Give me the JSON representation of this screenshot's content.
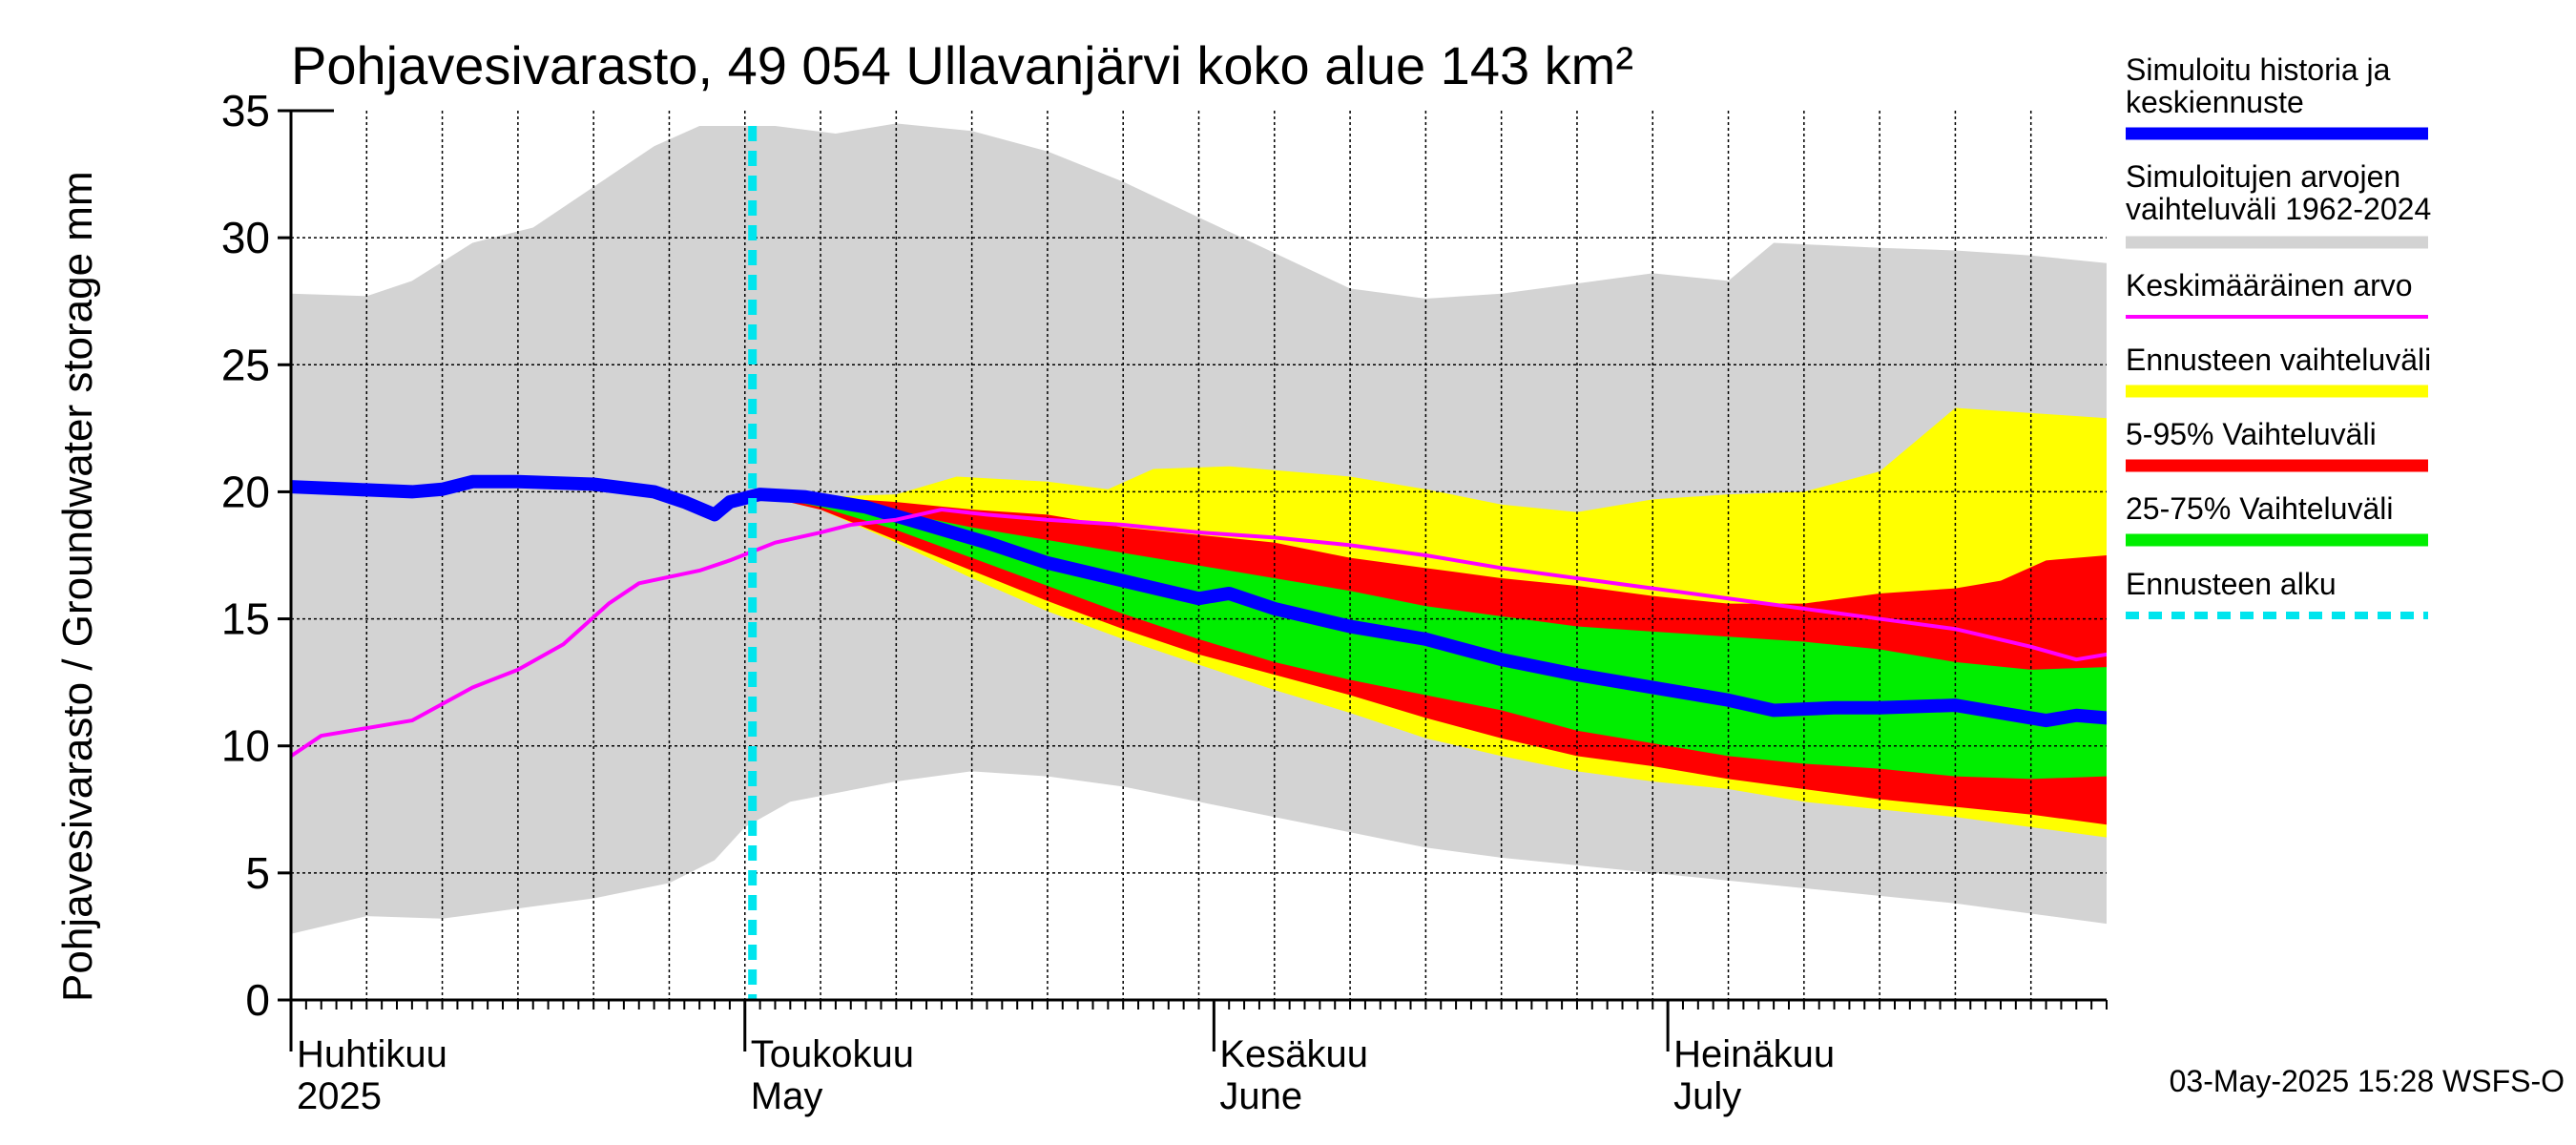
{
  "chart_data": {
    "type": "area",
    "title": "Pohjavesivarasto, 49 054 Ullavanjärvi koko alue 143 km²",
    "ylabel": "Pohjavesivarasto / Groundwater storage   mm",
    "ylim": [
      0,
      35
    ],
    "yticks": [
      0,
      5,
      10,
      15,
      20,
      25,
      30,
      35
    ],
    "xlim_day": [
      0,
      120
    ],
    "month_labels": [
      {
        "fi": "Huhtikuu",
        "en": "2025",
        "day": 0
      },
      {
        "fi": "Toukokuu",
        "en": "May",
        "day": 30
      },
      {
        "fi": "Kesäkuu",
        "en": "June",
        "day": 61
      },
      {
        "fi": "Heinäkuu",
        "en": "July",
        "day": 91
      }
    ],
    "forecast_start_day": 30.5,
    "timestamp": "03-May-2025 15:28 WSFS-O",
    "series": [
      {
        "name": "sim_range",
        "kind": "band",
        "color": "#d3d3d3",
        "lower": [
          [
            0,
            2.6
          ],
          [
            5,
            3.3
          ],
          [
            10,
            3.2
          ],
          [
            15,
            3.6
          ],
          [
            20,
            4.0
          ],
          [
            25,
            4.6
          ],
          [
            28,
            5.5
          ],
          [
            30,
            6.8
          ],
          [
            33,
            7.8
          ],
          [
            40,
            8.6
          ],
          [
            45,
            9.0
          ],
          [
            50,
            8.8
          ],
          [
            55,
            8.4
          ],
          [
            60,
            7.8
          ],
          [
            65,
            7.2
          ],
          [
            70,
            6.6
          ],
          [
            75,
            6.0
          ],
          [
            80,
            5.6
          ],
          [
            85,
            5.3
          ],
          [
            90,
            5.0
          ],
          [
            95,
            4.7
          ],
          [
            100,
            4.4
          ],
          [
            105,
            4.1
          ],
          [
            110,
            3.8
          ],
          [
            115,
            3.4
          ],
          [
            120,
            3.0
          ]
        ],
        "upper": [
          [
            0,
            27.8
          ],
          [
            5,
            27.7
          ],
          [
            8,
            28.3
          ],
          [
            12,
            29.8
          ],
          [
            16,
            30.4
          ],
          [
            20,
            32.0
          ],
          [
            24,
            33.6
          ],
          [
            27,
            34.4
          ],
          [
            32,
            34.4
          ],
          [
            36,
            34.1
          ],
          [
            40,
            34.5
          ],
          [
            45,
            34.2
          ],
          [
            50,
            33.4
          ],
          [
            55,
            32.2
          ],
          [
            60,
            30.8
          ],
          [
            65,
            29.4
          ],
          [
            70,
            28.0
          ],
          [
            75,
            27.6
          ],
          [
            80,
            27.8
          ],
          [
            85,
            28.2
          ],
          [
            90,
            28.6
          ],
          [
            95,
            28.3
          ],
          [
            98,
            29.8
          ],
          [
            105,
            29.6
          ],
          [
            110,
            29.5
          ],
          [
            115,
            29.3
          ],
          [
            120,
            29.0
          ]
        ]
      },
      {
        "name": "forecast_range",
        "kind": "band",
        "color": "#ffff00",
        "lower": [
          [
            30,
            20.0
          ],
          [
            35,
            19.3
          ],
          [
            40,
            18.0
          ],
          [
            45,
            16.6
          ],
          [
            50,
            15.3
          ],
          [
            55,
            14.2
          ],
          [
            60,
            13.2
          ],
          [
            65,
            12.2
          ],
          [
            70,
            11.3
          ],
          [
            75,
            10.3
          ],
          [
            80,
            9.6
          ],
          [
            85,
            9.0
          ],
          [
            90,
            8.6
          ],
          [
            95,
            8.3
          ],
          [
            100,
            7.8
          ],
          [
            105,
            7.5
          ],
          [
            110,
            7.2
          ],
          [
            115,
            6.8
          ],
          [
            120,
            6.4
          ]
        ],
        "upper": [
          [
            30,
            20.0
          ],
          [
            35,
            19.8
          ],
          [
            40,
            19.9
          ],
          [
            44,
            20.6
          ],
          [
            50,
            20.4
          ],
          [
            54,
            20.1
          ],
          [
            57,
            20.9
          ],
          [
            62,
            21.0
          ],
          [
            70,
            20.6
          ],
          [
            75,
            20.1
          ],
          [
            80,
            19.5
          ],
          [
            85,
            19.2
          ],
          [
            90,
            19.7
          ],
          [
            95,
            19.9
          ],
          [
            100,
            20.0
          ],
          [
            105,
            20.8
          ],
          [
            110,
            23.3
          ],
          [
            115,
            23.1
          ],
          [
            120,
            22.9
          ]
        ]
      },
      {
        "name": "p5_95",
        "kind": "band",
        "color": "#ff0000",
        "lower": [
          [
            30,
            20.0
          ],
          [
            35,
            19.3
          ],
          [
            40,
            18.1
          ],
          [
            45,
            16.9
          ],
          [
            50,
            15.7
          ],
          [
            55,
            14.6
          ],
          [
            60,
            13.6
          ],
          [
            65,
            12.8
          ],
          [
            70,
            12.0
          ],
          [
            75,
            11.1
          ],
          [
            80,
            10.3
          ],
          [
            85,
            9.6
          ],
          [
            90,
            9.2
          ],
          [
            95,
            8.7
          ],
          [
            100,
            8.3
          ],
          [
            105,
            7.9
          ],
          [
            110,
            7.6
          ],
          [
            115,
            7.3
          ],
          [
            120,
            6.9
          ]
        ],
        "upper": [
          [
            30,
            20.0
          ],
          [
            35,
            19.8
          ],
          [
            40,
            19.6
          ],
          [
            45,
            19.3
          ],
          [
            50,
            19.1
          ],
          [
            55,
            18.6
          ],
          [
            60,
            18.3
          ],
          [
            65,
            18.0
          ],
          [
            70,
            17.4
          ],
          [
            75,
            17.0
          ],
          [
            80,
            16.6
          ],
          [
            85,
            16.3
          ],
          [
            90,
            15.9
          ],
          [
            95,
            15.6
          ],
          [
            100,
            15.6
          ],
          [
            105,
            16.0
          ],
          [
            110,
            16.2
          ],
          [
            113,
            16.5
          ],
          [
            116,
            17.3
          ],
          [
            120,
            17.5
          ]
        ]
      },
      {
        "name": "p25_75",
        "kind": "band",
        "color": "#00ee00",
        "lower": [
          [
            30,
            20.0
          ],
          [
            35,
            19.4
          ],
          [
            40,
            18.5
          ],
          [
            45,
            17.4
          ],
          [
            50,
            16.3
          ],
          [
            55,
            15.2
          ],
          [
            60,
            14.2
          ],
          [
            65,
            13.3
          ],
          [
            70,
            12.6
          ],
          [
            75,
            12.0
          ],
          [
            80,
            11.4
          ],
          [
            85,
            10.6
          ],
          [
            90,
            10.1
          ],
          [
            95,
            9.6
          ],
          [
            100,
            9.3
          ],
          [
            105,
            9.1
          ],
          [
            110,
            8.8
          ],
          [
            115,
            8.7
          ],
          [
            120,
            8.8
          ]
        ],
        "upper": [
          [
            30,
            20.0
          ],
          [
            35,
            19.7
          ],
          [
            40,
            19.2
          ],
          [
            45,
            18.6
          ],
          [
            50,
            18.1
          ],
          [
            55,
            17.6
          ],
          [
            60,
            17.1
          ],
          [
            65,
            16.6
          ],
          [
            70,
            16.1
          ],
          [
            75,
            15.5
          ],
          [
            80,
            15.1
          ],
          [
            85,
            14.7
          ],
          [
            90,
            14.5
          ],
          [
            95,
            14.3
          ],
          [
            100,
            14.1
          ],
          [
            105,
            13.8
          ],
          [
            110,
            13.3
          ],
          [
            115,
            13.0
          ],
          [
            120,
            13.1
          ]
        ]
      },
      {
        "name": "simulated_history_and_median_forecast",
        "kind": "line",
        "color": "#0000ff",
        "width": 14,
        "points": [
          [
            0,
            20.2
          ],
          [
            4,
            20.1
          ],
          [
            8,
            20.0
          ],
          [
            10,
            20.1
          ],
          [
            12,
            20.4
          ],
          [
            15,
            20.4
          ],
          [
            20,
            20.3
          ],
          [
            24,
            20.0
          ],
          [
            26,
            19.6
          ],
          [
            28,
            19.1
          ],
          [
            29,
            19.6
          ],
          [
            31,
            19.9
          ],
          [
            34,
            19.8
          ],
          [
            38,
            19.4
          ],
          [
            42,
            18.7
          ],
          [
            46,
            18.0
          ],
          [
            50,
            17.2
          ],
          [
            55,
            16.5
          ],
          [
            60,
            15.8
          ],
          [
            62,
            16.0
          ],
          [
            65,
            15.4
          ],
          [
            70,
            14.7
          ],
          [
            75,
            14.2
          ],
          [
            80,
            13.4
          ],
          [
            85,
            12.8
          ],
          [
            90,
            12.3
          ],
          [
            95,
            11.8
          ],
          [
            98,
            11.4
          ],
          [
            102,
            11.5
          ],
          [
            105,
            11.5
          ],
          [
            110,
            11.6
          ],
          [
            113,
            11.3
          ],
          [
            116,
            11.0
          ],
          [
            118,
            11.2
          ],
          [
            120,
            11.1
          ]
        ]
      },
      {
        "name": "mean_value",
        "kind": "line",
        "color": "#ff00ff",
        "width": 4,
        "points": [
          [
            0,
            9.6
          ],
          [
            2,
            10.4
          ],
          [
            8,
            11.0
          ],
          [
            12,
            12.3
          ],
          [
            15,
            13.0
          ],
          [
            18,
            14.0
          ],
          [
            21,
            15.6
          ],
          [
            23,
            16.4
          ],
          [
            27,
            16.9
          ],
          [
            29,
            17.3
          ],
          [
            32,
            18.0
          ],
          [
            35,
            18.4
          ],
          [
            37,
            18.7
          ],
          [
            40,
            18.9
          ],
          [
            43,
            19.3
          ],
          [
            46,
            19.1
          ],
          [
            50,
            18.9
          ],
          [
            55,
            18.7
          ],
          [
            60,
            18.4
          ],
          [
            65,
            18.2
          ],
          [
            70,
            17.9
          ],
          [
            75,
            17.5
          ],
          [
            80,
            17.0
          ],
          [
            85,
            16.6
          ],
          [
            90,
            16.2
          ],
          [
            95,
            15.8
          ],
          [
            100,
            15.4
          ],
          [
            105,
            15.0
          ],
          [
            110,
            14.6
          ],
          [
            115,
            13.9
          ],
          [
            118,
            13.4
          ],
          [
            120,
            13.6
          ]
        ]
      }
    ],
    "legend": [
      {
        "label": "Simuloitu historia ja",
        "label2": "keskiennuste",
        "color": "#0000ff",
        "style": "thick"
      },
      {
        "label": "Simuloitujen arvojen",
        "label2": "vaihteluväli 1962-2024",
        "color": "#d3d3d3",
        "style": "thick"
      },
      {
        "label": "Keskimääräinen arvo",
        "label2": "",
        "color": "#ff00ff",
        "style": "thin"
      },
      {
        "label": "Ennusteen vaihteluväli",
        "label2": "",
        "color": "#ffff00",
        "style": "thick"
      },
      {
        "label": "5-95% Vaihteluväli",
        "label2": "",
        "color": "#ff0000",
        "style": "thick"
      },
      {
        "label": "25-75% Vaihteluväli",
        "label2": "",
        "color": "#00ee00",
        "style": "thick"
      },
      {
        "label": "Ennusteen alku",
        "label2": "",
        "color": "#00e5ee",
        "style": "dashed"
      }
    ]
  }
}
